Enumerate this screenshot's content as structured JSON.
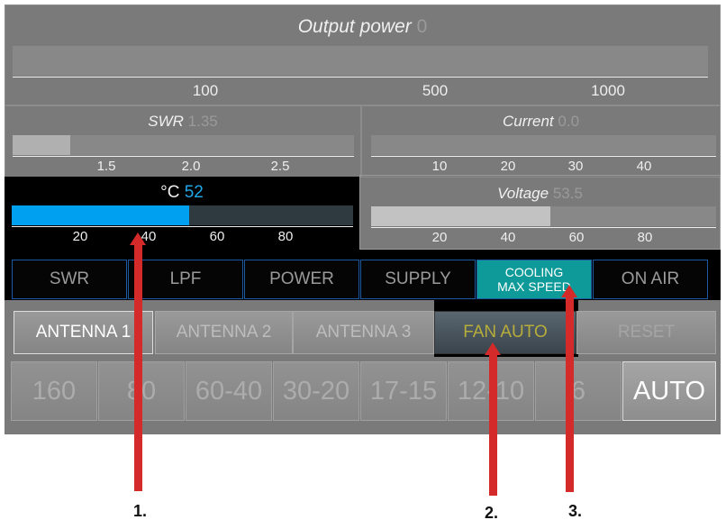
{
  "output_power": {
    "label": "Output power",
    "value": "0",
    "ticks": [
      "100",
      "500",
      "1000"
    ],
    "fill_fraction": 0
  },
  "swr": {
    "label": "SWR",
    "value": "1.35",
    "ticks": [
      "1.5",
      "2.0",
      "2.5"
    ],
    "fill_fraction": 0.17
  },
  "current": {
    "label": "Current",
    "value": "0.0",
    "ticks": [
      "10",
      "20",
      "30",
      "40"
    ],
    "fill_fraction": 0
  },
  "temperature": {
    "label": "°C",
    "value": "52",
    "ticks": [
      "20",
      "40",
      "60",
      "80"
    ],
    "fill_fraction": 0.52,
    "color": "#00a0f0"
  },
  "voltage": {
    "label": "Voltage",
    "value": "53.5",
    "ticks": [
      "20",
      "40",
      "60",
      "80"
    ],
    "fill_fraction": 0.535
  },
  "status": [
    "SWR",
    "LPF",
    "POWER",
    "SUPPLY",
    "COOLING MAX SPEED",
    "ON AIR"
  ],
  "status_active_color": "#0f9a9a",
  "antenna_row": [
    "ANTENNA 1",
    "ANTENNA 2",
    "ANTENNA 3",
    "FAN AUTO",
    "RESET"
  ],
  "bands": [
    "160",
    "80",
    "60-40",
    "30-20",
    "17-15",
    "12-10",
    "6",
    "AUTO"
  ],
  "callouts": [
    "1.",
    "2.",
    "3."
  ]
}
